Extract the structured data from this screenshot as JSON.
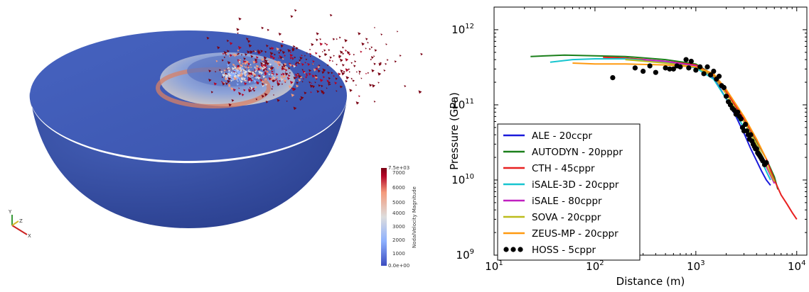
{
  "simulation_view": {
    "colorbar": {
      "title": "NodalVelocity Magnitude",
      "max_label": "7.5e+03",
      "min_label": "0.0e+00",
      "ticks": [
        "7000",
        "6000",
        "5000",
        "4000",
        "3000",
        "2000",
        "1000"
      ],
      "colors": [
        "#3b4cc0",
        "#8db0fe",
        "#dddddd",
        "#f49a7b",
        "#b40426",
        "#7a0214"
      ]
    },
    "axes_triad": {
      "labels": [
        "Y",
        "Z",
        "X"
      ]
    },
    "hemisphere_color": "#3d56b0"
  },
  "chart_data": {
    "type": "line",
    "xlabel": "Distance (m)",
    "ylabel": "Pressure (GPa)",
    "xscale": "log",
    "yscale": "log",
    "xlim": [
      10,
      12600
    ],
    "ylim": [
      1000000000.0,
      2000000000000.0
    ],
    "xticks": [
      {
        "value": 10,
        "base": "10",
        "exp": "1"
      },
      {
        "value": 100,
        "base": "10",
        "exp": "2"
      },
      {
        "value": 1000,
        "base": "10",
        "exp": "3"
      },
      {
        "value": 10000,
        "base": "10",
        "exp": "4"
      }
    ],
    "yticks": [
      {
        "value": 1000000000.0,
        "base": "10",
        "exp": "9"
      },
      {
        "value": 10000000000.0,
        "base": "10",
        "exp": "10"
      },
      {
        "value": 100000000000.0,
        "base": "10",
        "exp": "11"
      },
      {
        "value": 1000000000000.0,
        "base": "10",
        "exp": "12"
      }
    ],
    "legend_position": "lower-left",
    "series": [
      {
        "name": "ALE - 20ccpr",
        "color": "#1a1adb",
        "x": [
          200,
          1000,
          1500,
          2000,
          2500,
          3000,
          3500,
          4000,
          4500,
          5000,
          5500
        ],
        "y": [
          420000000000.0,
          340000000000.0,
          230000000000.0,
          120000000000.0,
          70000000000.0,
          42000000000.0,
          26000000000.0,
          18000000000.0,
          13000000000.0,
          10000000000.0,
          8500000000.0
        ]
      },
      {
        "name": "AUTODYN - 20pppr",
        "color": "#1a7f1a",
        "x": [
          23,
          50,
          100,
          200,
          500,
          1000,
          1500,
          2000,
          3000,
          4000,
          5000,
          6000,
          6500
        ],
        "y": [
          440000000000.0,
          460000000000.0,
          450000000000.0,
          440000000000.0,
          400000000000.0,
          350000000000.0,
          250000000000.0,
          150000000000.0,
          65000000000.0,
          33000000000.0,
          19000000000.0,
          11000000000.0,
          7500000000.0
        ]
      },
      {
        "name": "CTH - 45cppr",
        "color": "#e82020",
        "x": [
          120,
          200,
          500,
          1000,
          1500,
          2000,
          3000,
          4000,
          5000,
          6000,
          7000,
          8000,
          9000,
          10000
        ],
        "y": [
          430000000000.0,
          420000000000.0,
          380000000000.0,
          340000000000.0,
          250000000000.0,
          150000000000.0,
          65000000000.0,
          34000000000.0,
          19000000000.0,
          10000000000.0,
          6300000000.0,
          4800000000.0,
          3700000000.0,
          3000000000.0
        ]
      },
      {
        "name": "iSALE-3D - 20cppr",
        "color": "#17c5cf",
        "x": [
          36,
          60,
          100,
          200,
          500,
          1000,
          1500,
          2000,
          3000,
          4000,
          5000,
          5500
        ],
        "y": [
          370000000000.0,
          400000000000.0,
          410000000000.0,
          410000000000.0,
          370000000000.0,
          310000000000.0,
          220000000000.0,
          120000000000.0,
          50000000000.0,
          25000000000.0,
          13000000000.0,
          10000000000.0
        ]
      },
      {
        "name": "iSALE - 80cppr",
        "color": "#c020c0",
        "x": [
          300,
          500,
          1000,
          1500,
          2000,
          3000,
          4000,
          5000,
          6000
        ],
        "y": [
          400000000000.0,
          380000000000.0,
          330000000000.0,
          240000000000.0,
          140000000000.0,
          60000000000.0,
          30000000000.0,
          15000000000.0,
          9000000000.0
        ]
      },
      {
        "name": "SOVA - 20cppr",
        "color": "#bcbc1c",
        "x": [
          200,
          500,
          1000,
          1500,
          2000,
          3000,
          4000,
          5000,
          6000
        ],
        "y": [
          400000000000.0,
          360000000000.0,
          320000000000.0,
          240000000000.0,
          140000000000.0,
          60000000000.0,
          30000000000.0,
          16000000000.0,
          9500000000.0
        ]
      },
      {
        "name": "ZEUS-MP - 20cppr",
        "color": "#ff9a10",
        "x": [
          60,
          100,
          200,
          500,
          1000,
          1500,
          2000,
          3000,
          4000,
          5000
        ],
        "y": [
          360000000000.0,
          350000000000.0,
          350000000000.0,
          340000000000.0,
          320000000000.0,
          260000000000.0,
          160000000000.0,
          70000000000.0,
          35000000000.0,
          19000000000.0
        ]
      },
      {
        "name": "HOSS - 5cppr",
        "color": "#000000",
        "style": "scatter",
        "x": [
          150,
          250,
          300,
          350,
          400,
          500,
          550,
          600,
          650,
          700,
          800,
          850,
          900,
          1000,
          1100,
          1200,
          1300,
          1400,
          1500,
          1600,
          1700,
          1800,
          1900,
          2000,
          2100,
          2200,
          2300,
          2400,
          2500,
          2600,
          2700,
          2800,
          2900,
          3000,
          3100,
          3200,
          3300,
          3400,
          3500,
          3600,
          3700,
          3800,
          3900,
          4000,
          4100,
          4200,
          4300,
          4400,
          4500,
          4600,
          4800,
          5000
        ],
        "y": [
          230000000000.0,
          310000000000.0,
          280000000000.0,
          330000000000.0,
          270000000000.0,
          310000000000.0,
          300000000000.0,
          300000000000.0,
          330000000000.0,
          320000000000.0,
          400000000000.0,
          310000000000.0,
          380000000000.0,
          290000000000.0,
          320000000000.0,
          260000000000.0,
          320000000000.0,
          250000000000.0,
          280000000000.0,
          220000000000.0,
          240000000000.0,
          180000000000.0,
          170000000000.0,
          130000000000.0,
          110000000000.0,
          100000000000.0,
          90000000000.0,
          85000000000.0,
          75000000000.0,
          80000000000.0,
          70000000000.0,
          65000000000.0,
          50000000000.0,
          45000000000.0,
          55000000000.0,
          45000000000.0,
          40000000000.0,
          35000000000.0,
          40000000000.0,
          33000000000.0,
          30000000000.0,
          28000000000.0,
          26000000000.0,
          26000000000.0,
          23000000000.0,
          22000000000.0,
          21000000000.0,
          20000000000.0,
          19000000000.0,
          18000000000.0,
          16000000000.0,
          17000000000.0
        ]
      }
    ]
  }
}
